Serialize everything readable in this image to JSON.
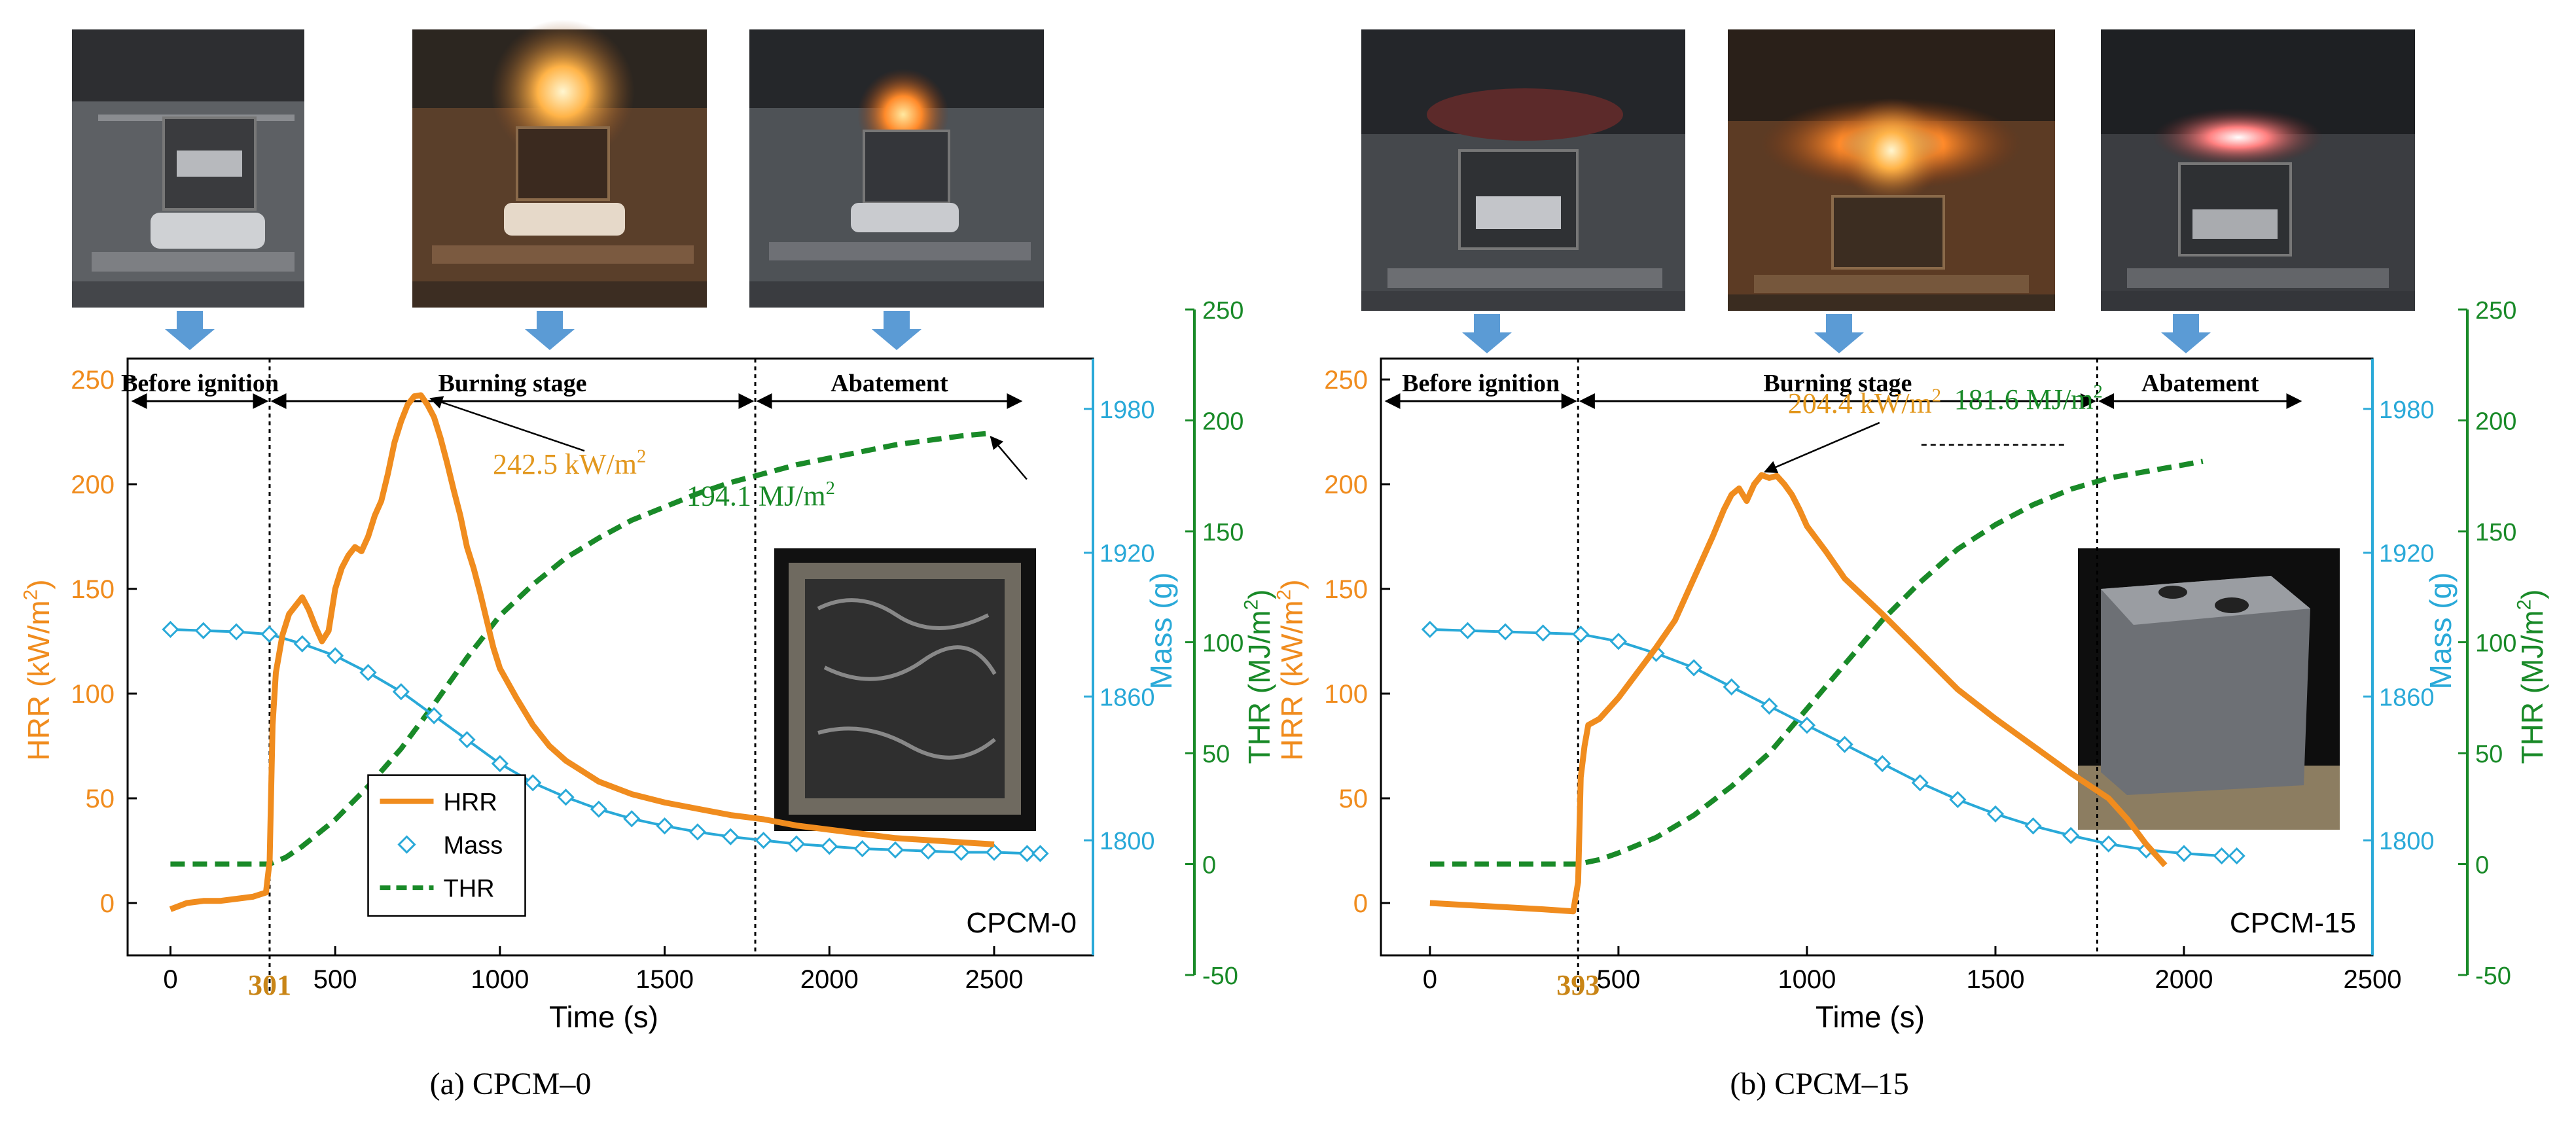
{
  "colors": {
    "hrr": "#f08c1e",
    "mass": "#29a9d8",
    "thr": "#198a28",
    "annotation_hrr": "#e2971d",
    "annotation_thr": "#198a28",
    "ignition_label": "#c98516",
    "arrow": "#5b9bd5",
    "axis_black": "#000000"
  },
  "chart_data": [
    {
      "id": "a",
      "type": "line",
      "caption": "(a) CPCM–0",
      "sample_label": "CPCM-0",
      "xlabel": "Time (s)",
      "xlim": [
        -130,
        2800
      ],
      "xticks": [
        0,
        500,
        1000,
        1500,
        2000,
        2500
      ],
      "y_left": {
        "label": "HRR (kW/m²)",
        "lim": [
          -25,
          260
        ],
        "ticks": [
          0,
          50,
          100,
          150,
          200,
          250
        ]
      },
      "y_mass": {
        "label": "Mass (g)",
        "lim": [
          1752,
          2001
        ],
        "ticks": [
          1800,
          1860,
          1920,
          1980
        ]
      },
      "y_thr": {
        "label": "THR (MJ/m²)",
        "lim": [
          -52,
          260
        ],
        "ticks": [
          -50,
          0,
          50,
          100,
          150,
          200,
          250
        ]
      },
      "ignition_time": 301,
      "abatement_time": 1775,
      "stages": [
        "Before ignition",
        "Burning stage",
        "Abatement"
      ],
      "legend": [
        "HRR",
        "Mass",
        "THR"
      ],
      "peak_hrr_label": "242.5 kW/m²",
      "peak_hrr": {
        "x": 760,
        "y": 242.5
      },
      "total_thr_label": "194.1 MJ/m²",
      "total_thr": {
        "x": 2480,
        "y": 194.1
      },
      "series": [
        {
          "name": "HRR",
          "axis": "left",
          "x": [
            0,
            50,
            100,
            150,
            200,
            250,
            290,
            301,
            310,
            320,
            340,
            360,
            380,
            400,
            420,
            440,
            460,
            480,
            500,
            520,
            540,
            560,
            580,
            600,
            620,
            640,
            660,
            680,
            700,
            720,
            740,
            760,
            780,
            800,
            820,
            840,
            860,
            880,
            900,
            920,
            940,
            960,
            980,
            1000,
            1050,
            1100,
            1150,
            1200,
            1300,
            1400,
            1500,
            1600,
            1700,
            1800,
            1900,
            2000,
            2100,
            2200,
            2300,
            2400,
            2500
          ],
          "y": [
            -3,
            0,
            1,
            1,
            2,
            3,
            5,
            20,
            85,
            110,
            128,
            138,
            142,
            146,
            140,
            132,
            125,
            130,
            150,
            160,
            166,
            170,
            168,
            175,
            185,
            192,
            205,
            220,
            230,
            238,
            242,
            242.5,
            238,
            232,
            222,
            210,
            197,
            185,
            170,
            160,
            148,
            135,
            122,
            112,
            98,
            85,
            75,
            68,
            58,
            52,
            48,
            45,
            42,
            40,
            37,
            35,
            33,
            31,
            30,
            29,
            28
          ]
        },
        {
          "name": "Mass",
          "axis": "mass",
          "x": [
            0,
            100,
            200,
            300,
            400,
            500,
            600,
            700,
            800,
            900,
            1000,
            1100,
            1200,
            1300,
            1400,
            1500,
            1600,
            1700,
            1800,
            1900,
            2000,
            2100,
            2200,
            2300,
            2400,
            2500,
            2600,
            2640
          ],
          "y": [
            1888,
            1887.5,
            1887,
            1886,
            1882,
            1877,
            1870,
            1862,
            1852,
            1842,
            1832,
            1824,
            1818,
            1813,
            1809,
            1806,
            1803.5,
            1801.5,
            1800,
            1798.5,
            1797.5,
            1796.5,
            1796,
            1795.5,
            1795,
            1795,
            1794.5,
            1794.5
          ]
        },
        {
          "name": "THR",
          "axis": "thr",
          "x": [
            0,
            100,
            200,
            300,
            350,
            400,
            500,
            600,
            700,
            800,
            900,
            1000,
            1100,
            1200,
            1300,
            1400,
            1500,
            1600,
            1700,
            1800,
            1900,
            2000,
            2100,
            2200,
            2300,
            2400,
            2480
          ],
          "y": [
            0,
            0,
            0,
            0,
            3,
            8,
            20,
            35,
            52,
            72,
            93,
            112,
            126,
            138,
            147,
            155,
            161,
            167,
            172,
            176,
            180,
            183,
            186,
            189,
            191,
            193,
            194.1
          ]
        }
      ]
    },
    {
      "id": "b",
      "type": "line",
      "caption": "(b) CPCM–15",
      "sample_label": "CPCM-15",
      "xlabel": "Time (s)",
      "xlim": [
        -130,
        2500
      ],
      "xticks": [
        0,
        500,
        1000,
        1500,
        2000,
        2500
      ],
      "y_left": {
        "label": "HRR (kW/m²)",
        "lim": [
          -25,
          260
        ],
        "ticks": [
          0,
          50,
          100,
          150,
          200,
          250
        ]
      },
      "y_mass": {
        "label": "Mass (g)",
        "lim": [
          1752,
          2001
        ],
        "ticks": [
          1800,
          1860,
          1920,
          1980
        ]
      },
      "y_thr": {
        "label": "THR (MJ/m²)",
        "lim": [
          -52,
          260
        ],
        "ticks": [
          -50,
          0,
          50,
          100,
          150,
          200,
          250
        ]
      },
      "ignition_time": 393,
      "abatement_time": 1770,
      "stages": [
        "Before ignition",
        "Burning stage",
        "Abatement"
      ],
      "legend": [
        "HRR",
        "Mass",
        "THR"
      ],
      "peak_hrr_label": "204.4 kW/m²",
      "peak_hrr": {
        "x": 880,
        "y": 204.4
      },
      "total_thr_label": "181.6 MJ/m²",
      "total_thr": {
        "x": 2050,
        "y": 181.6
      },
      "series": [
        {
          "name": "HRR",
          "axis": "left",
          "x": [
            0,
            100,
            200,
            300,
            380,
            393,
            400,
            410,
            420,
            450,
            500,
            550,
            600,
            650,
            700,
            750,
            780,
            800,
            820,
            840,
            860,
            880,
            900,
            920,
            940,
            960,
            980,
            1000,
            1050,
            1100,
            1200,
            1300,
            1400,
            1500,
            1600,
            1700,
            1800,
            1850,
            1900,
            1950
          ],
          "y": [
            0,
            -1,
            -2,
            -3,
            -4,
            10,
            60,
            75,
            85,
            88,
            98,
            110,
            122,
            135,
            155,
            175,
            188,
            195,
            198,
            192,
            200,
            204.4,
            203,
            204,
            200,
            195,
            188,
            180,
            168,
            155,
            138,
            120,
            102,
            88,
            75,
            62,
            50,
            40,
            28,
            18
          ]
        },
        {
          "name": "Mass",
          "axis": "mass",
          "x": [
            0,
            100,
            200,
            300,
            400,
            500,
            600,
            700,
            800,
            900,
            1000,
            1100,
            1200,
            1300,
            1400,
            1500,
            1600,
            1700,
            1800,
            1900,
            2000,
            2100,
            2140
          ],
          "y": [
            1888,
            1887.5,
            1887,
            1886.5,
            1886,
            1883,
            1878,
            1872,
            1864,
            1856,
            1848,
            1840,
            1832,
            1824,
            1817,
            1811,
            1806,
            1802,
            1798.5,
            1796,
            1794.5,
            1793.5,
            1793.5
          ]
        },
        {
          "name": "THR",
          "axis": "thr",
          "x": [
            0,
            100,
            200,
            300,
            393,
            450,
            500,
            600,
            700,
            800,
            900,
            1000,
            1100,
            1200,
            1300,
            1400,
            1500,
            1600,
            1700,
            1800,
            1900,
            2000,
            2050
          ],
          "y": [
            0,
            0,
            0,
            0,
            0,
            2,
            5,
            12,
            22,
            35,
            50,
            70,
            90,
            110,
            127,
            142,
            153,
            162,
            169,
            174,
            177,
            180,
            181.6
          ]
        }
      ]
    }
  ]
}
